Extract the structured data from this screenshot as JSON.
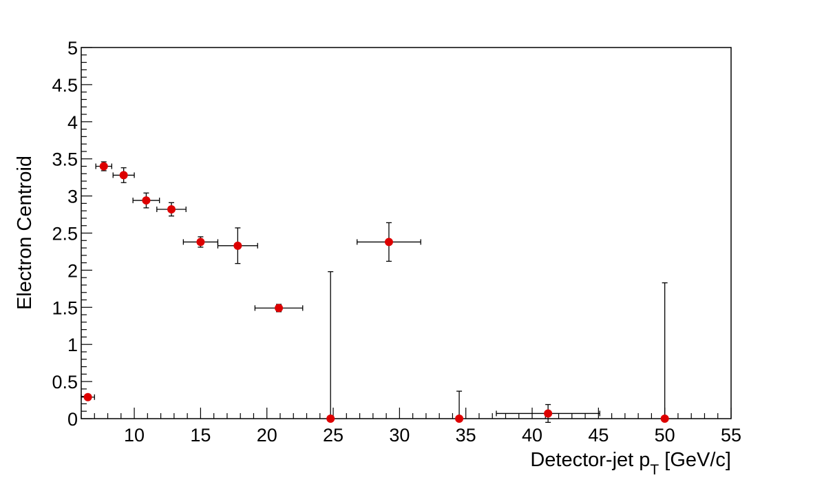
{
  "chart_data": {
    "type": "scatter",
    "xlabel": "Detector-jet p",
    "xlabel_subscript": "T",
    "xlabel_unit": " [GeV/c]",
    "ylabel": "Electron Centroid",
    "xlim": [
      6,
      55
    ],
    "ylim": [
      0,
      5
    ],
    "x_ticks": [
      10,
      15,
      20,
      25,
      30,
      35,
      40,
      45,
      50,
      55
    ],
    "y_ticks": [
      0,
      0.5,
      1,
      1.5,
      2,
      2.5,
      3,
      3.5,
      4,
      4.5,
      5
    ],
    "x_tick_labels": [
      "10",
      "15",
      "20",
      "25",
      "30",
      "35",
      "40",
      "45",
      "50",
      "55"
    ],
    "y_tick_labels": [
      "0",
      "0.5",
      "1",
      "1.5",
      "2",
      "2.5",
      "3",
      "3.5",
      "4",
      "4.5",
      "5"
    ],
    "grid": false,
    "marker_color": "#dd0000",
    "points": [
      {
        "x": 6.5,
        "xerr": 0.5,
        "y": 0.29,
        "yerr": 0.0
      },
      {
        "x": 7.7,
        "xerr": 0.6,
        "y": 3.4,
        "yerr": 0.06
      },
      {
        "x": 9.2,
        "xerr": 0.8,
        "y": 3.28,
        "yerr": 0.1
      },
      {
        "x": 10.9,
        "xerr": 1.0,
        "y": 2.94,
        "yerr": 0.1
      },
      {
        "x": 12.8,
        "xerr": 1.1,
        "y": 2.82,
        "yerr": 0.09
      },
      {
        "x": 15.0,
        "xerr": 1.3,
        "y": 2.38,
        "yerr": 0.07
      },
      {
        "x": 17.8,
        "xerr": 1.5,
        "y": 2.33,
        "yerr": 0.24
      },
      {
        "x": 20.9,
        "xerr": 1.8,
        "y": 1.49,
        "yerr": 0.05
      },
      {
        "x": 24.8,
        "xerr": 0.0,
        "y": 0.0,
        "yerr_up": 1.98,
        "yerr_down": 0.0
      },
      {
        "x": 29.2,
        "xerr": 2.4,
        "y": 2.38,
        "yerr": 0.26
      },
      {
        "x": 34.5,
        "xerr": 0.0,
        "y": 0.0,
        "yerr_up": 0.37,
        "yerr_down": 0.0
      },
      {
        "x": 41.2,
        "xerr": 3.9,
        "y": 0.07,
        "yerr": 0.12
      },
      {
        "x": 50.0,
        "xerr": 0.0,
        "y": 0.0,
        "yerr_up": 1.83,
        "yerr_down": 0.0
      }
    ]
  }
}
